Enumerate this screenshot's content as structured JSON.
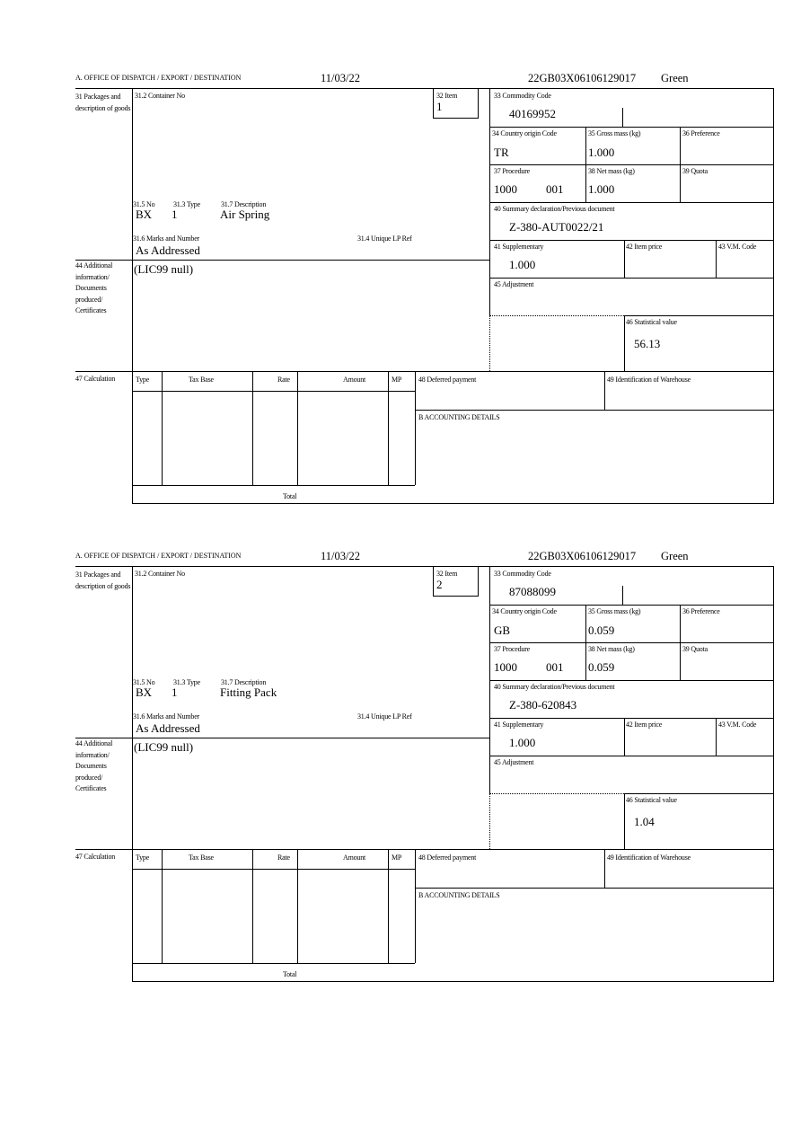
{
  "labels": {
    "office": "A.  OFFICE OF DISPATCH / EXPORT / DESTINATION",
    "packages": "31 Packages and description of goods",
    "container_no": "31.2 Container No",
    "item": "32 Item",
    "commodity_code": "33 Commodity Code",
    "country_origin": "34 Country origin Code",
    "gross_mass": "35 Gross mass (kg)",
    "preference": "36 Preference",
    "procedure": "37 Procedure",
    "net_mass": "38 Net mass (kg)",
    "quota": "39 Quota",
    "summary_declaration": "40 Summary declaration/Previous document",
    "supplementary": "41 Supplementary",
    "item_price": "42 Item price",
    "vm_code": "43 V.M. Code",
    "adjustment": "45 Adjustment",
    "statistical_value": "46 Statistical value",
    "pkg_no": "31.5 No",
    "pkg_type": "31.3 Type",
    "pkg_description": "31.7 Description",
    "marks": "31.6 Marks and Number",
    "unique_lp_ref": "31.4 Unique LP Ref",
    "additional_info": "44 Additional information/ Documents produced/ Certificates",
    "calculation": "47 Calculation",
    "col_type": "Type",
    "col_tax_base": "Tax Base",
    "col_rate": "Rate",
    "col_amount": "Amount",
    "col_mp": "MP",
    "deferred_payment": "48 Deferred payment",
    "warehouse": "49 Identification of Warehouse",
    "accounting": "B ACCOUNTING DETAILS",
    "total": "Total"
  },
  "forms": [
    {
      "date": "11/03/22",
      "reference": "22GB03X06106129017",
      "status": "Green",
      "item": "1",
      "commodity_code": "40169952",
      "country_origin": "TR",
      "gross_mass": "1.000",
      "procedure": "1000",
      "procedure_additional": "001",
      "net_mass": "1.000",
      "summary_declaration": "Z-380-AUT0022/21",
      "supplementary": "1.000",
      "statistical_value": "56.13",
      "pkg_no": "BX",
      "pkg_type": "1",
      "pkg_description": "Air Spring",
      "marks": "As Addressed",
      "additional_info": "(LIC99 null)"
    },
    {
      "date": "11/03/22",
      "reference": "22GB03X06106129017",
      "status": "Green",
      "item": "2",
      "commodity_code": "87088099",
      "country_origin": "GB",
      "gross_mass": "0.059",
      "procedure": "1000",
      "procedure_additional": "001",
      "net_mass": "0.059",
      "summary_declaration": "Z-380-620843",
      "supplementary": "1.000",
      "statistical_value": "1.04",
      "pkg_no": "BX",
      "pkg_type": "1",
      "pkg_description": "Fitting Pack",
      "marks": "As Addressed",
      "additional_info": "(LIC99 null)"
    }
  ]
}
